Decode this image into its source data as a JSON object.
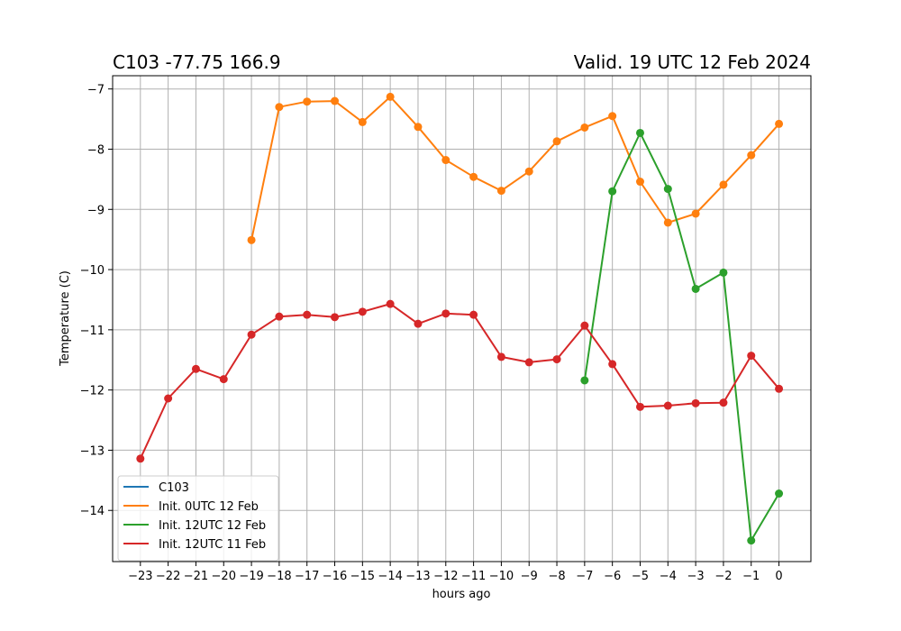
{
  "chart_data": {
    "type": "line",
    "title_left": "C103 -77.75 166.9",
    "title_right": "Valid. 19 UTC 12 Feb 2024",
    "xlabel": "hours ago",
    "ylabel": "Temperature (C)",
    "xlim": [
      -24,
      1.15
    ],
    "ylim": [
      -14.85,
      -6.78
    ],
    "xticks": [
      -23,
      -22,
      -21,
      -20,
      -19,
      -18,
      -17,
      -16,
      -15,
      -14,
      -13,
      -12,
      -11,
      -10,
      -9,
      -8,
      -7,
      -6,
      -5,
      -4,
      -3,
      -2,
      -1,
      0
    ],
    "yticks": [
      -14,
      -13,
      -12,
      -11,
      -10,
      -9,
      -8,
      -7
    ],
    "grid": true,
    "legend_position": "lower-left",
    "series": [
      {
        "name": "C103",
        "color": "#1f77b4",
        "x": [],
        "y": []
      },
      {
        "name": "Init. 0UTC 12 Feb",
        "color": "#ff7f0e",
        "x": [
          -19,
          -18,
          -17,
          -16,
          -15,
          -14,
          -13,
          -12,
          -11,
          -10,
          -9,
          -8,
          -7,
          -6,
          -5,
          -4,
          -3,
          -2,
          -1,
          0
        ],
        "y": [
          -9.51,
          -7.3,
          -7.21,
          -7.2,
          -7.55,
          -7.13,
          -7.63,
          -8.18,
          -8.46,
          -8.69,
          -8.37,
          -7.87,
          -7.64,
          -7.45,
          -8.54,
          -9.22,
          -9.07,
          -8.59,
          -8.1,
          -7.58
        ]
      },
      {
        "name": "Init. 12UTC 12 Feb",
        "color": "#2ca02c",
        "x": [
          -7,
          -6,
          -5,
          -4,
          -3,
          -2,
          -1,
          0
        ],
        "y": [
          -11.84,
          -8.7,
          -7.73,
          -8.66,
          -10.32,
          -10.05,
          -14.5,
          -13.72
        ]
      },
      {
        "name": "Init. 12UTC 11 Feb",
        "color": "#d62728",
        "x": [
          -23,
          -22,
          -21,
          -20,
          -19,
          -18,
          -17,
          -16,
          -15,
          -14,
          -13,
          -12,
          -11,
          -10,
          -9,
          -8,
          -7,
          -6,
          -5,
          -4,
          -3,
          -2,
          -1,
          0
        ],
        "y": [
          -13.14,
          -12.14,
          -11.65,
          -11.82,
          -11.08,
          -10.78,
          -10.75,
          -10.79,
          -10.7,
          -10.57,
          -10.9,
          -10.73,
          -10.75,
          -11.45,
          -11.54,
          -11.49,
          -10.93,
          -11.57,
          -12.28,
          -12.26,
          -12.22,
          -12.21,
          -11.43,
          -11.98
        ]
      }
    ]
  }
}
